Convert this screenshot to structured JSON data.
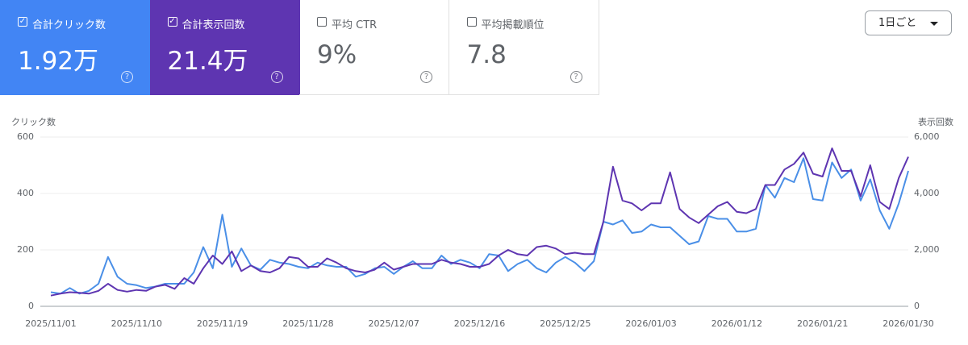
{
  "cards": [
    {
      "label": "合計クリック数",
      "value": "1.92万",
      "checked": true,
      "color": "#4285f4"
    },
    {
      "label": "合計表示回数",
      "value": "21.4万",
      "checked": true,
      "color": "#5e35b1"
    },
    {
      "label": "平均 CTR",
      "value": "9%",
      "checked": false,
      "color": null
    },
    {
      "label": "平均掲載順位",
      "value": "7.8",
      "checked": false,
      "color": null
    }
  ],
  "granularity": "1日ごと",
  "chart_data": {
    "type": "line",
    "ylabel": "クリック数",
    "y2label": "表示回数",
    "categories": [
      "2025/11/01",
      null,
      null,
      null,
      null,
      null,
      null,
      null,
      null,
      "2025/11/10",
      null,
      null,
      null,
      null,
      null,
      null,
      null,
      null,
      "2025/11/19",
      null,
      null,
      null,
      null,
      null,
      null,
      null,
      null,
      "2025/11/28",
      null,
      null,
      null,
      null,
      null,
      null,
      null,
      null,
      "2025/12/07",
      null,
      null,
      null,
      null,
      null,
      null,
      null,
      null,
      "2025/12/16",
      null,
      null,
      null,
      null,
      null,
      null,
      null,
      null,
      "2025/12/25",
      null,
      null,
      null,
      null,
      null,
      null,
      null,
      null,
      "2026/01/03",
      null,
      null,
      null,
      null,
      null,
      null,
      null,
      null,
      "2026/01/12",
      null,
      null,
      null,
      null,
      null,
      null,
      null,
      null,
      "2026/01/21",
      null,
      null,
      null,
      null,
      null,
      null,
      null,
      null,
      "2026/01/30"
    ],
    "series": [
      {
        "color": "#4a8fe7",
        "axis": "y",
        "values": [
          50,
          45,
          65,
          45,
          55,
          80,
          175,
          105,
          80,
          75,
          65,
          70,
          80,
          80,
          80,
          120,
          210,
          135,
          325,
          140,
          205,
          145,
          130,
          165,
          155,
          150,
          140,
          135,
          155,
          145,
          140,
          140,
          105,
          115,
          135,
          140,
          115,
          140,
          160,
          135,
          135,
          180,
          150,
          165,
          155,
          135,
          185,
          180,
          125,
          150,
          165,
          135,
          120,
          155,
          175,
          155,
          125,
          160,
          300,
          290,
          305,
          260,
          265,
          290,
          280,
          280,
          250,
          220,
          230,
          320,
          310,
          310,
          265,
          265,
          275,
          430,
          385,
          455,
          440,
          525,
          380,
          375,
          510,
          455,
          485,
          375,
          450,
          340,
          275,
          365,
          480
        ]
      },
      {
        "color": "#5e35b1",
        "axis": "y2",
        "values": [
          380,
          450,
          500,
          480,
          450,
          550,
          800,
          580,
          520,
          580,
          550,
          700,
          760,
          620,
          1000,
          800,
          1350,
          1800,
          1500,
          1950,
          1250,
          1450,
          1250,
          1200,
          1350,
          1750,
          1700,
          1400,
          1400,
          1700,
          1550,
          1350,
          1250,
          1200,
          1300,
          1550,
          1300,
          1400,
          1500,
          1500,
          1500,
          1650,
          1550,
          1500,
          1400,
          1400,
          1500,
          1800,
          2000,
          1850,
          1800,
          2100,
          2150,
          2050,
          1850,
          1900,
          1850,
          1850,
          3000,
          4950,
          3750,
          3650,
          3400,
          3650,
          3650,
          4750,
          3450,
          3150,
          2950,
          3250,
          3550,
          3700,
          3350,
          3300,
          3450,
          4300,
          4300,
          4850,
          5050,
          5450,
          4700,
          4600,
          5600,
          4800,
          4800,
          3900,
          5000,
          3700,
          3450,
          4550,
          5300
        ]
      }
    ],
    "ylim": [
      0,
      600
    ],
    "yticks": [
      0,
      200,
      400,
      600
    ],
    "y2lim": [
      0,
      6000
    ],
    "y2ticks": [
      0,
      {
        "value": 2000,
        "label": "2,000"
      },
      {
        "value": 4000,
        "label": "4,000"
      },
      {
        "value": 6000,
        "label": "6,000"
      }
    ],
    "grid": true
  }
}
